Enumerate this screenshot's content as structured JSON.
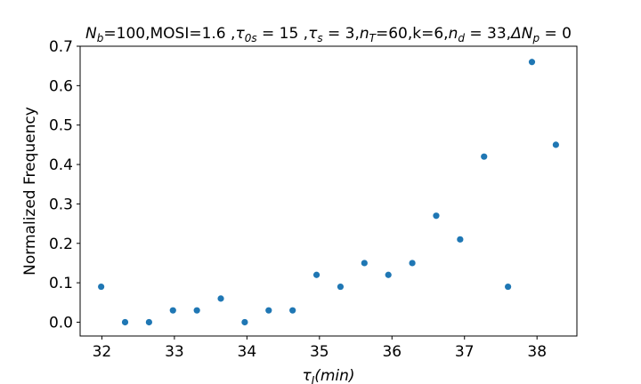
{
  "chart_data": {
    "type": "scatter",
    "title_parts": [
      {
        "text": "N",
        "style": "italic"
      },
      {
        "text": "b",
        "style": "sub-italic"
      },
      {
        "text": "=100,MOSI=1.6 ,",
        "style": "normal"
      },
      {
        "text": "τ",
        "style": "italic"
      },
      {
        "text": "0s",
        "style": "sub-italic"
      },
      {
        "text": " = 15 ,",
        "style": "normal"
      },
      {
        "text": "τ",
        "style": "italic"
      },
      {
        "text": "s",
        "style": "sub-italic"
      },
      {
        "text": " = 3,",
        "style": "normal"
      },
      {
        "text": "n",
        "style": "italic"
      },
      {
        "text": "T",
        "style": "sub-italic"
      },
      {
        "text": "=60,k=6,",
        "style": "normal"
      },
      {
        "text": "n",
        "style": "italic"
      },
      {
        "text": "d",
        "style": "sub-italic"
      },
      {
        "text": " = 33,",
        "style": "normal"
      },
      {
        "text": "ΔN",
        "style": "italic"
      },
      {
        "text": "p",
        "style": "sub-italic"
      },
      {
        "text": " = 0",
        "style": "normal"
      }
    ],
    "xlabel_parts": [
      {
        "text": "τ",
        "style": "italic"
      },
      {
        "text": "I",
        "style": "sub-italic"
      },
      {
        "text": "(min)",
        "style": "italic"
      }
    ],
    "ylabel": "Normalized Frequency",
    "xlim": [
      31.7,
      38.55
    ],
    "ylim": [
      -0.035,
      0.7
    ],
    "xticks": [
      "32",
      "33",
      "34",
      "35",
      "36",
      "37",
      "38"
    ],
    "yticks": [
      "0.0",
      "0.1",
      "0.2",
      "0.3",
      "0.4",
      "0.5",
      "0.6",
      "0.7"
    ],
    "grid": false,
    "marker_color": "#1f77b4",
    "x": [
      31.99,
      32.32,
      32.65,
      32.98,
      33.31,
      33.64,
      33.97,
      34.3,
      34.63,
      34.96,
      35.29,
      35.62,
      35.95,
      36.28,
      36.61,
      36.94,
      37.27,
      37.6,
      37.93,
      38.26
    ],
    "y": [
      0.09,
      0.0,
      0.0,
      0.03,
      0.03,
      0.06,
      0.0,
      0.03,
      0.03,
      0.12,
      0.09,
      0.15,
      0.12,
      0.15,
      0.27,
      0.21,
      0.42,
      0.09,
      0.66,
      0.45
    ]
  }
}
